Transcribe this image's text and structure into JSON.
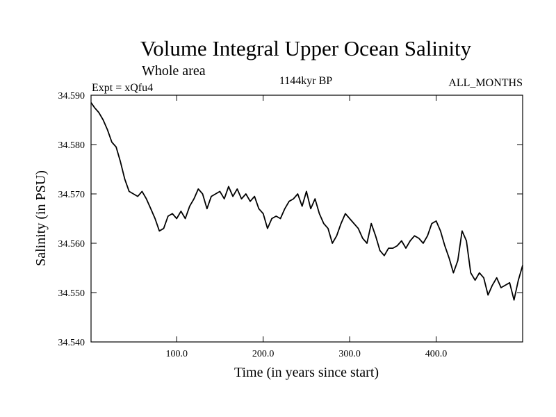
{
  "chart_data": {
    "type": "line",
    "title": "Volume Integral Upper Ocean Salinity",
    "subtitle": "Whole area",
    "header_left": "Expt = xQfu4",
    "header_center": "1144kyr BP",
    "header_right": "ALL_MONTHS",
    "xlabel": "Time (in years since start)",
    "ylabel": "Salinity (in PSU)",
    "xlim": [
      1,
      500
    ],
    "ylim": [
      34.54,
      34.59
    ],
    "xticks": [
      100,
      200,
      300,
      400
    ],
    "xtick_labels": [
      "100.0",
      "200.0",
      "300.0",
      "400.0"
    ],
    "yticks": [
      34.54,
      34.55,
      34.56,
      34.57,
      34.58,
      34.59
    ],
    "ytick_labels": [
      "34.540",
      "34.550",
      "34.560",
      "34.570",
      "34.580",
      "34.590"
    ],
    "grid": false,
    "series": [
      {
        "name": "Salinity",
        "color": "#000000",
        "x": [
          1,
          5,
          10,
          15,
          20,
          25,
          30,
          35,
          40,
          45,
          50,
          55,
          60,
          65,
          70,
          75,
          80,
          85,
          90,
          95,
          100,
          105,
          110,
          115,
          120,
          125,
          130,
          135,
          140,
          145,
          150,
          155,
          160,
          165,
          170,
          175,
          180,
          185,
          190,
          195,
          200,
          205,
          210,
          215,
          220,
          225,
          230,
          235,
          240,
          245,
          250,
          255,
          260,
          265,
          270,
          275,
          280,
          285,
          290,
          295,
          300,
          305,
          310,
          315,
          320,
          325,
          330,
          335,
          340,
          345,
          350,
          355,
          360,
          365,
          370,
          375,
          380,
          385,
          390,
          395,
          400,
          405,
          410,
          415,
          420,
          425,
          430,
          435,
          440,
          445,
          450,
          455,
          460,
          465,
          470,
          475,
          480,
          485,
          490,
          495,
          500
        ],
        "values": [
          34.5885,
          34.5875,
          34.5865,
          34.585,
          34.583,
          34.5805,
          34.5795,
          34.5765,
          34.573,
          34.5705,
          34.57,
          34.5695,
          34.5705,
          34.569,
          34.567,
          34.565,
          34.5625,
          34.563,
          34.5655,
          34.566,
          34.565,
          34.5665,
          34.565,
          34.5675,
          34.569,
          34.571,
          34.57,
          34.567,
          34.5695,
          34.57,
          34.5705,
          34.569,
          34.5715,
          34.5695,
          34.571,
          34.569,
          34.57,
          34.5685,
          34.5695,
          34.567,
          34.566,
          34.563,
          34.565,
          34.5655,
          34.565,
          34.567,
          34.5685,
          34.569,
          34.57,
          34.5675,
          34.5705,
          34.567,
          34.569,
          34.566,
          34.564,
          34.563,
          34.56,
          34.5615,
          34.564,
          34.566,
          34.565,
          34.564,
          34.563,
          34.561,
          34.56,
          34.564,
          34.5615,
          34.5585,
          34.5575,
          34.559,
          34.559,
          34.5595,
          34.5605,
          34.559,
          34.5605,
          34.5615,
          34.561,
          34.56,
          34.5615,
          34.564,
          34.5645,
          34.5625,
          34.5595,
          34.557,
          34.554,
          34.5565,
          34.5625,
          34.5605,
          34.554,
          34.5525,
          34.554,
          34.553,
          34.5495,
          34.5515,
          34.553,
          34.551,
          34.5515,
          34.552,
          34.5485,
          34.5525,
          34.5555
        ]
      }
    ]
  }
}
